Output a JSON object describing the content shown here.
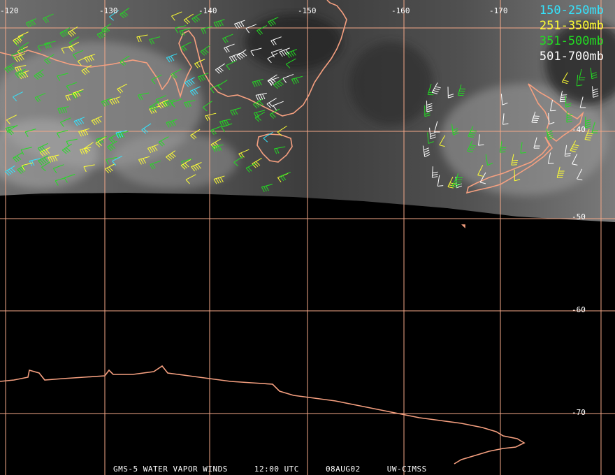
{
  "map": {
    "longitude_labels": [
      "-120",
      "-130",
      "-140",
      "-150",
      "-160",
      "-170"
    ],
    "latitude_labels": [
      "-40",
      "-50",
      "-60",
      "-70"
    ]
  },
  "legend": {
    "items": [
      {
        "label": "150-250mb",
        "color": "#33e5ff"
      },
      {
        "label": "251-350mb",
        "color": "#ffff33"
      },
      {
        "label": "351-500mb",
        "color": "#22dd22"
      },
      {
        "label": "501-700mb",
        "color": "#ffffff"
      }
    ]
  },
  "footer": {
    "satellite": "GMS-5 WATER VAPOR WINDS",
    "time": "12:00 UTC",
    "date": "08AUG02",
    "source": "UW-CIMSS"
  },
  "colors": {
    "grid": "#f4a888",
    "coast": "#f6a080",
    "background": "#000000"
  }
}
